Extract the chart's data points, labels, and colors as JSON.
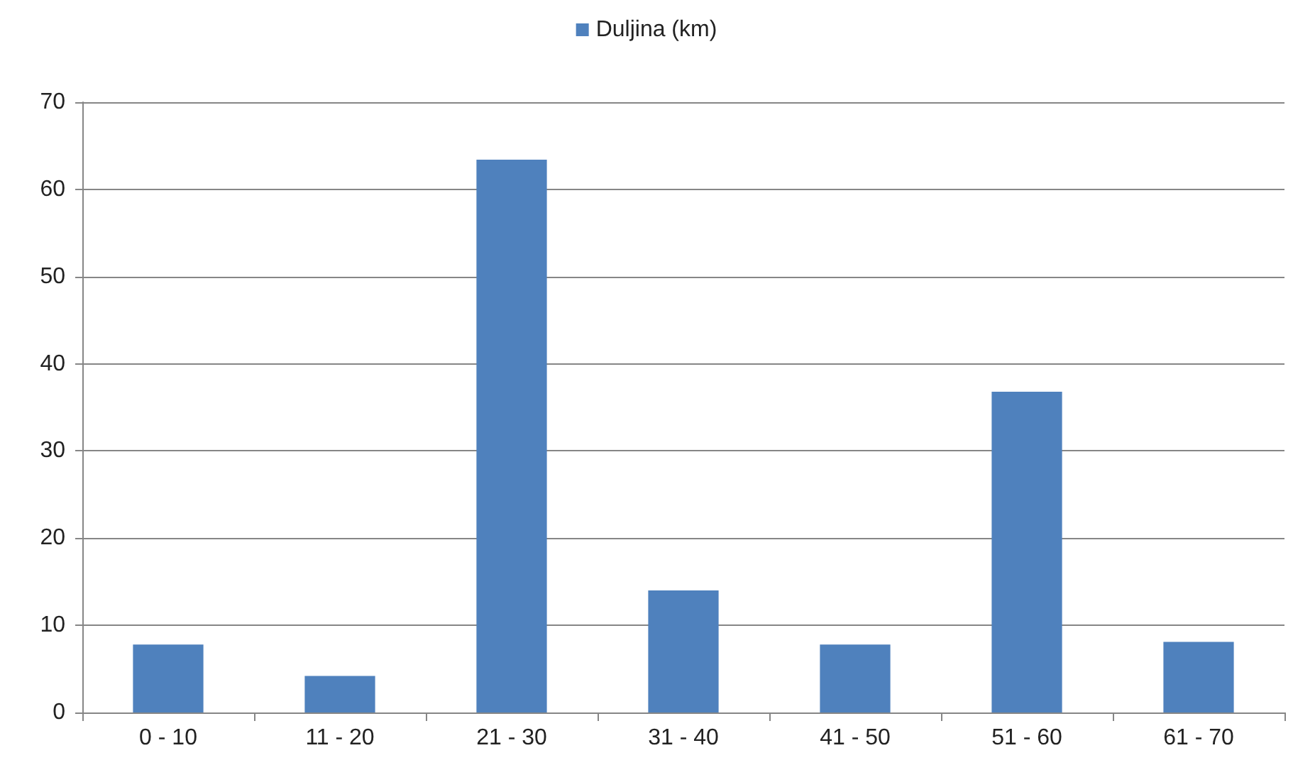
{
  "chart_data": {
    "type": "bar",
    "categories": [
      "0 - 10",
      "11 - 20",
      "21 - 30",
      "31 - 40",
      "41 - 50",
      "51 - 60",
      "61 - 70"
    ],
    "series": [
      {
        "name": "Duljina (km)",
        "color": "#4f81bd",
        "values": [
          7.8,
          4.2,
          63.4,
          14.0,
          7.8,
          36.8,
          8.1
        ]
      }
    ],
    "ylim": [
      0,
      70
    ],
    "yticks": [
      0,
      10,
      20,
      30,
      40,
      50,
      60,
      70
    ],
    "grid": "y",
    "legend": "top"
  }
}
